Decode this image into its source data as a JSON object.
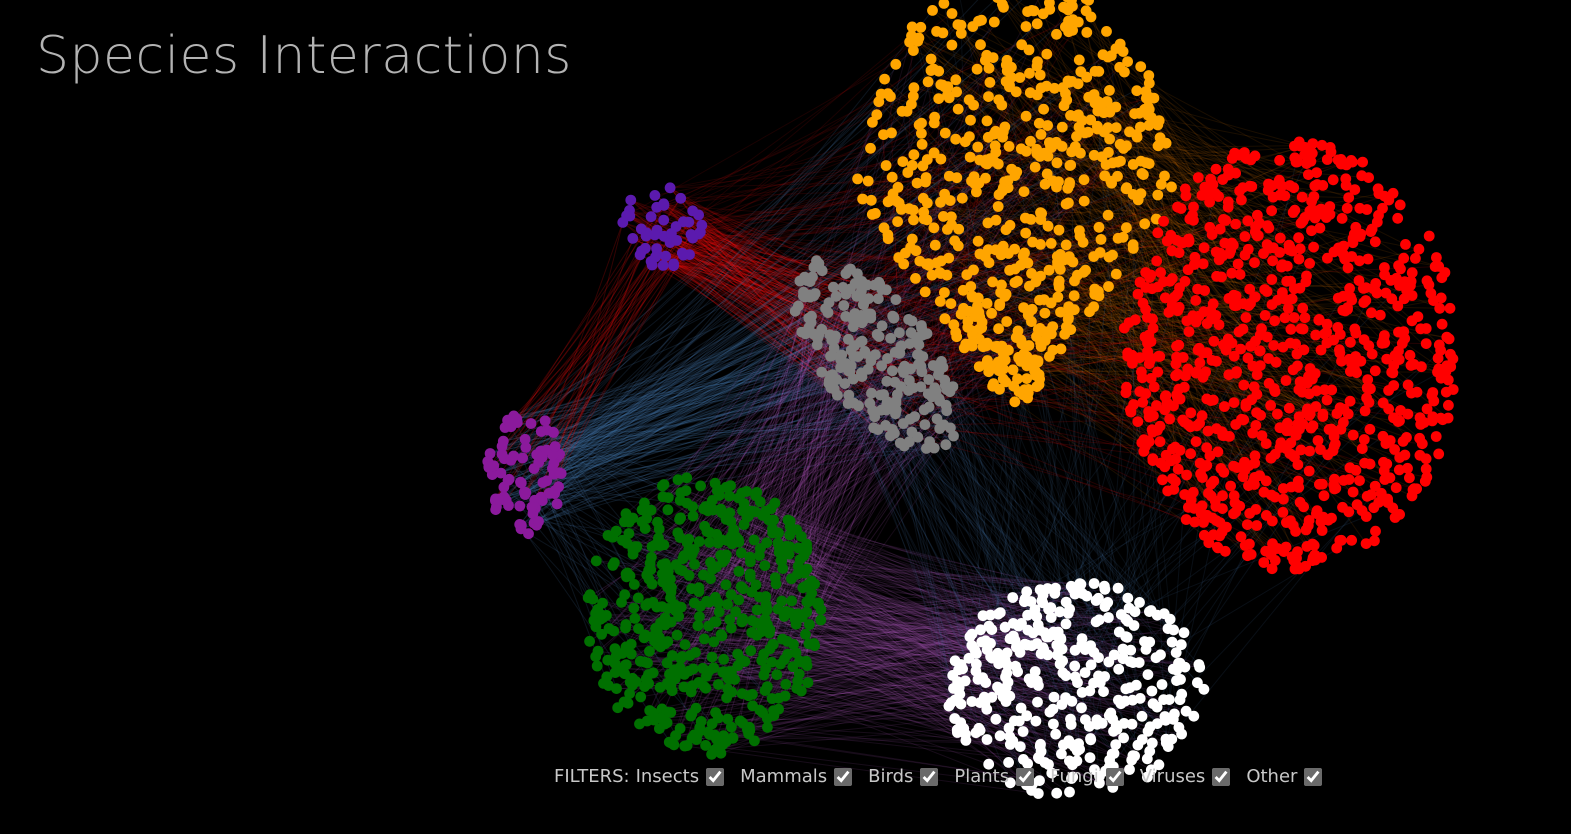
{
  "title": "Species Interactions",
  "filters": {
    "prefix": "FILTERS:",
    "items": [
      {
        "label": "Insects",
        "checked": true
      },
      {
        "label": "Mammals",
        "checked": true
      },
      {
        "label": "Birds",
        "checked": true
      },
      {
        "label": "Plants",
        "checked": true
      },
      {
        "label": "Fungi",
        "checked": true
      },
      {
        "label": "Viruses",
        "checked": true
      },
      {
        "label": "Other",
        "checked": true
      }
    ]
  },
  "colors": {
    "background": "#000000",
    "title": "#b3b3b3",
    "filter_text": "#c8c8c8",
    "node_colors": [
      "#FFA500",
      "#FF0000",
      "#808080",
      "#5B1AAE",
      "#8B1A9C",
      "#007000",
      "#FFFFFF"
    ],
    "link_colors": [
      "#FF1010",
      "#FF8C00",
      "#4A7FB5",
      "#C060D0"
    ]
  },
  "icons": {
    "checkbox": "checked-checkbox-icon"
  }
}
